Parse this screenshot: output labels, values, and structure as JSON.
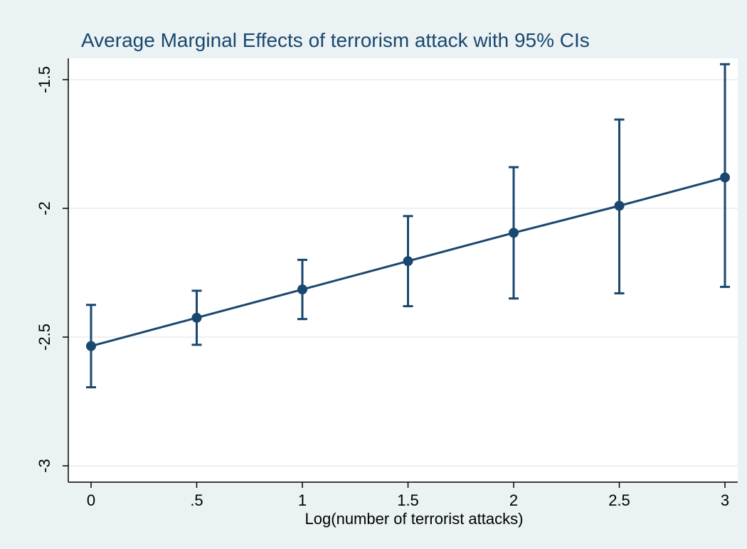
{
  "chart_data": {
    "type": "line",
    "title": "Average Marginal Effects of terrorism attack with 95% CIs",
    "xlabel": "Log(number of terrorist attacks)",
    "ylabel": "",
    "x": [
      0,
      0.5,
      1,
      1.5,
      2,
      2.5,
      3
    ],
    "x_tick_labels": [
      "0",
      ".5",
      "1",
      "1.5",
      "2",
      "2.5",
      "3"
    ],
    "y_ticks": [
      -3,
      -2.5,
      -2,
      -1.5
    ],
    "y_tick_labels": [
      "-3",
      "-2.5",
      "-2",
      "-1.5"
    ],
    "xlim": [
      0,
      3
    ],
    "ylim": [
      -3,
      -1.5
    ],
    "series": [
      {
        "values": [
          -2.535,
          -2.425,
          -2.315,
          -2.205,
          -2.095,
          -1.99,
          -1.88
        ],
        "ci_lower": [
          -2.695,
          -2.53,
          -2.43,
          -2.38,
          -2.35,
          -2.33,
          -2.305
        ],
        "ci_upper": [
          -2.375,
          -2.32,
          -2.2,
          -2.03,
          -1.84,
          -1.655,
          -1.44
        ]
      }
    ],
    "grid": true,
    "legend": "none",
    "colors": {
      "series": "#1a476f",
      "plot_bg": "#ffffff",
      "page_bg": "#eaf2f3",
      "grid": "#eaf2f3"
    }
  }
}
